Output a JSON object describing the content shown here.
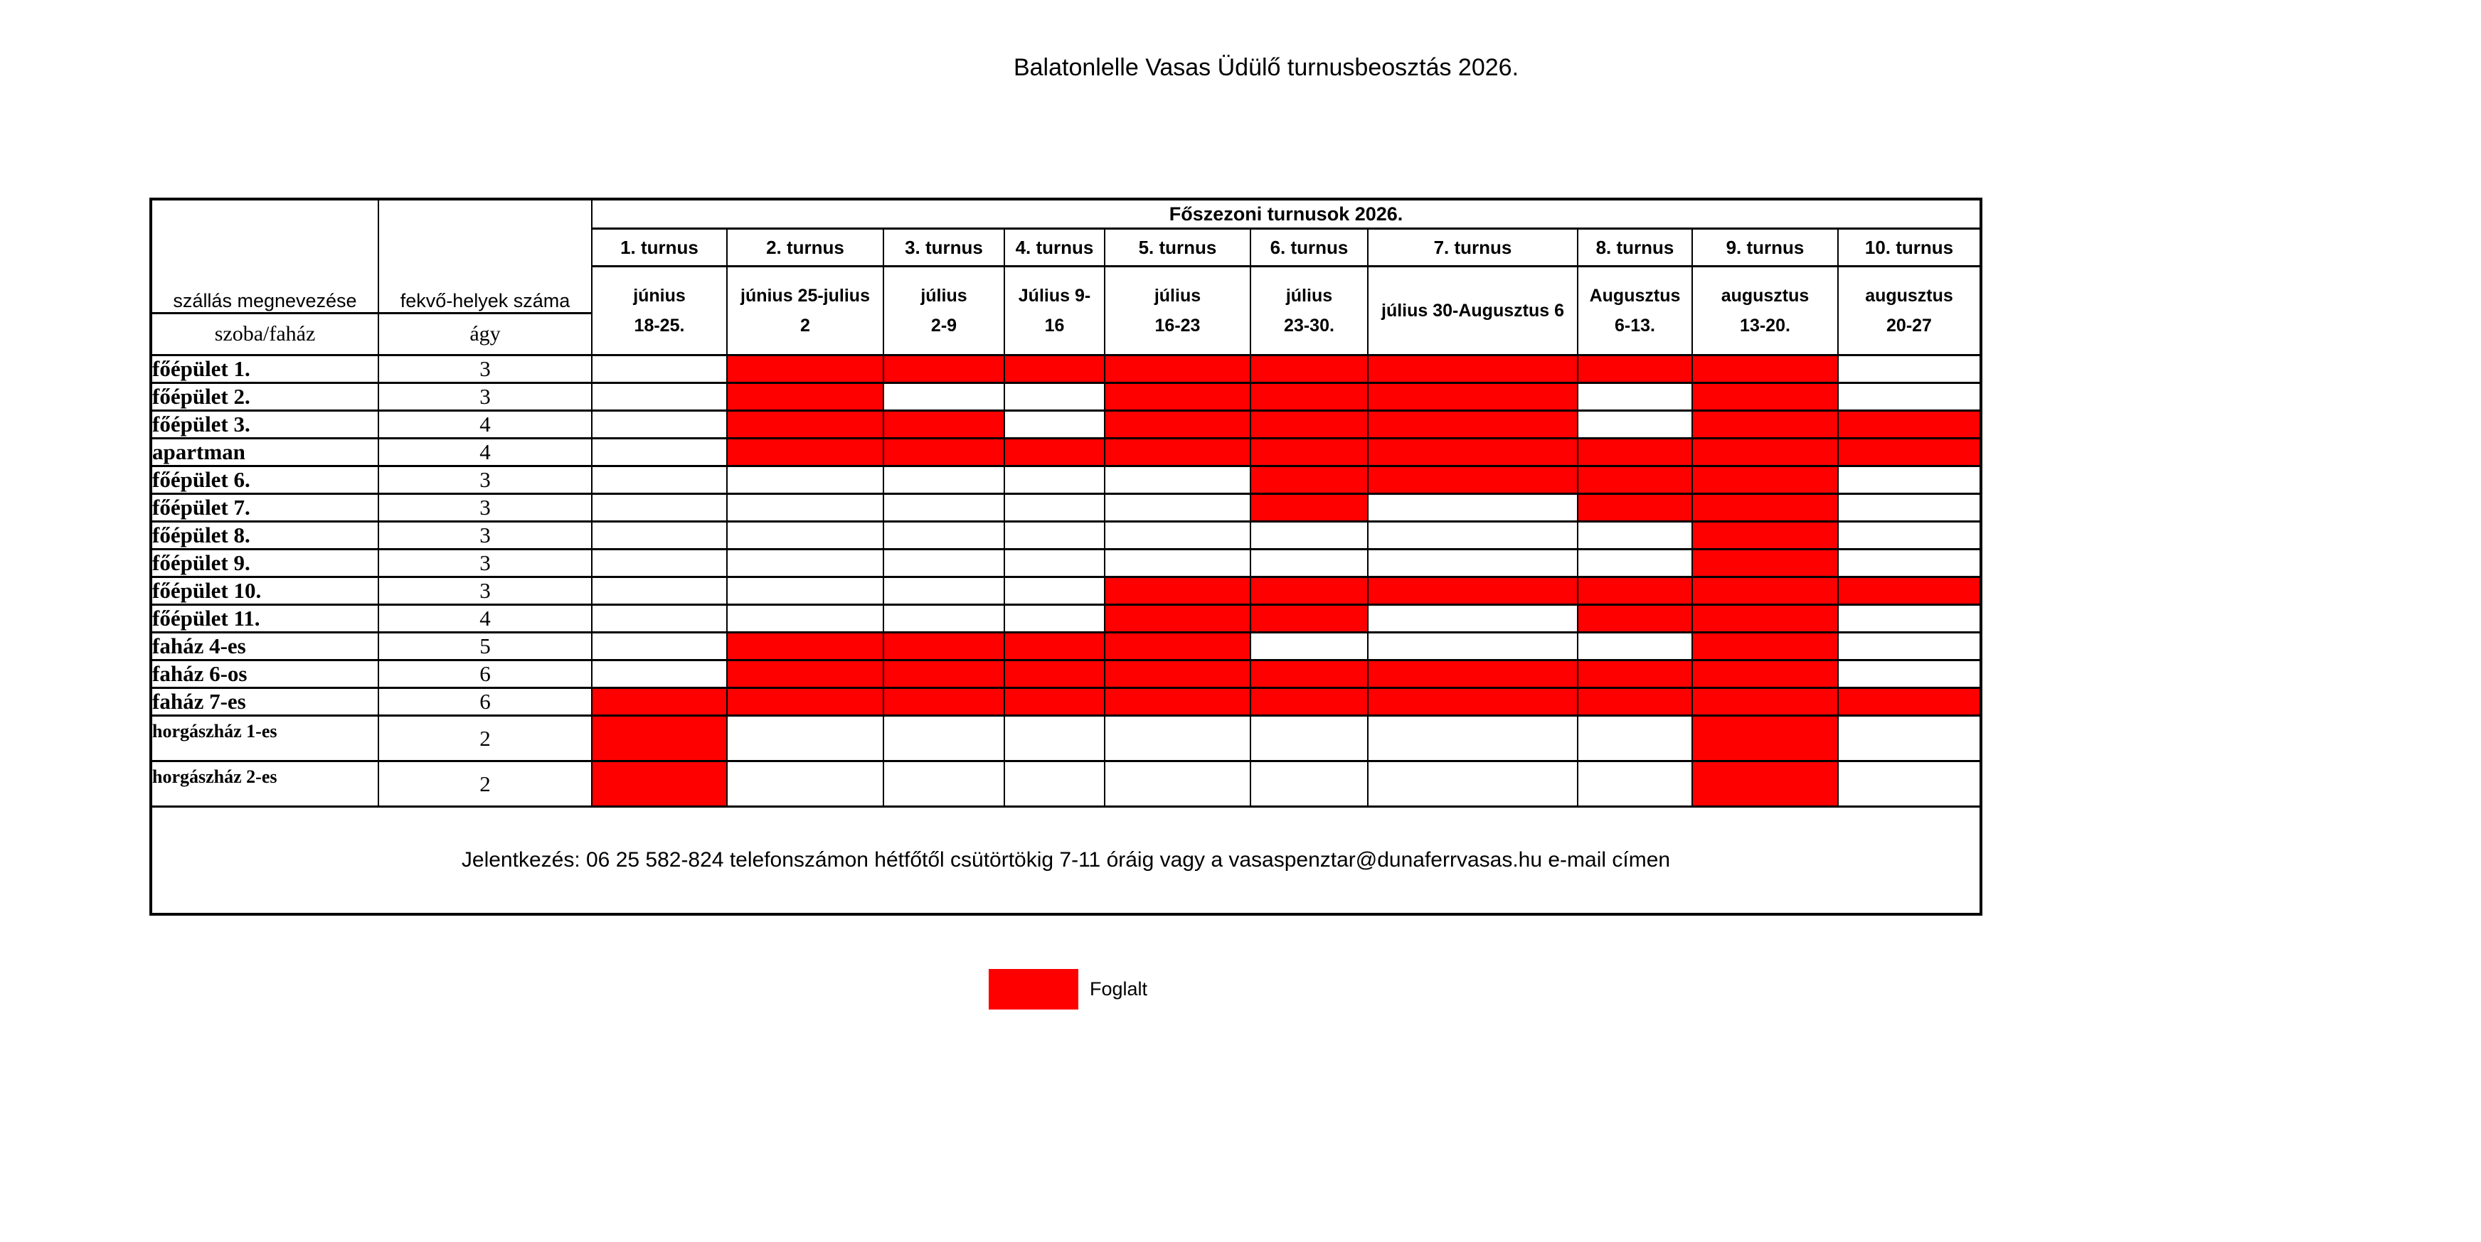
{
  "page": {
    "title": "Balatonlelle Vasas Üdülő turnusbeosztás 2026."
  },
  "colors": {
    "occupied": "#FF0000",
    "border": "#000000",
    "background": "#FFFFFF"
  },
  "table": {
    "season_header": "Főszezoni turnusok 2026.",
    "col1_header": "szállás megnevezése",
    "col1_subheader": "szoba/faház",
    "col2_header": "fekvő-helyek száma",
    "col2_subheader": "ágy",
    "turnus": [
      {
        "label": "1. turnus",
        "dates_line1": "június",
        "dates_line2": "18-25."
      },
      {
        "label": "2. turnus",
        "dates_line1": "június 25-julius",
        "dates_line2": "2"
      },
      {
        "label": "3. turnus",
        "dates_line1": "július",
        "dates_line2": "2-9"
      },
      {
        "label": "4. turnus",
        "dates_line1": "Július 9-",
        "dates_line2": "16"
      },
      {
        "label": "5. turnus",
        "dates_line1": "július",
        "dates_line2": "16-23"
      },
      {
        "label": "6. turnus",
        "dates_line1": "július",
        "dates_line2": "23-30."
      },
      {
        "label": "7. turnus",
        "dates_line1": "július 30-Augusztus 6",
        "dates_line2": ""
      },
      {
        "label": "8. turnus",
        "dates_line1": "Augusztus",
        "dates_line2": "6-13."
      },
      {
        "label": "9. turnus",
        "dates_line1": "augusztus",
        "dates_line2": "13-20."
      },
      {
        "label": "10. turnus",
        "dates_line1": "augusztus",
        "dates_line2": "20-27"
      }
    ],
    "rows": [
      {
        "name": "főépület 1.",
        "beds": "3",
        "occupied": [
          0,
          1,
          1,
          1,
          1,
          1,
          1,
          1,
          1,
          0
        ]
      },
      {
        "name": "főépület 2.",
        "beds": "3",
        "occupied": [
          0,
          1,
          0,
          0,
          1,
          1,
          1,
          0,
          1,
          0
        ]
      },
      {
        "name": "főépület 3.",
        "beds": "4",
        "occupied": [
          0,
          1,
          1,
          0,
          1,
          1,
          1,
          0,
          1,
          1
        ]
      },
      {
        "name": "apartman",
        "beds": "4",
        "occupied": [
          0,
          1,
          1,
          1,
          1,
          1,
          1,
          1,
          1,
          1
        ]
      },
      {
        "name": "főépület 6.",
        "beds": "3",
        "occupied": [
          0,
          0,
          0,
          0,
          0,
          1,
          1,
          1,
          1,
          0
        ]
      },
      {
        "name": "főépület 7.",
        "beds": "3",
        "occupied": [
          0,
          0,
          0,
          0,
          0,
          1,
          0,
          1,
          1,
          0
        ]
      },
      {
        "name": "főépület 8.",
        "beds": "3",
        "occupied": [
          0,
          0,
          0,
          0,
          0,
          0,
          0,
          0,
          1,
          0
        ]
      },
      {
        "name": "főépület 9.",
        "beds": "3",
        "occupied": [
          0,
          0,
          0,
          0,
          0,
          0,
          0,
          0,
          1,
          0
        ]
      },
      {
        "name": "főépület 10.",
        "beds": "3",
        "occupied": [
          0,
          0,
          0,
          0,
          1,
          1,
          1,
          1,
          1,
          1
        ]
      },
      {
        "name": "főépület 11.",
        "beds": "4",
        "occupied": [
          0,
          0,
          0,
          0,
          1,
          1,
          0,
          1,
          1,
          0
        ]
      },
      {
        "name": "faház 4-es",
        "beds": "5",
        "occupied": [
          0,
          1,
          1,
          1,
          1,
          0,
          0,
          0,
          1,
          0
        ]
      },
      {
        "name": "faház 6-os",
        "beds": "6",
        "occupied": [
          0,
          1,
          1,
          1,
          1,
          1,
          1,
          1,
          1,
          0
        ]
      },
      {
        "name": "faház 7-es",
        "beds": "6",
        "occupied": [
          1,
          1,
          1,
          1,
          1,
          1,
          1,
          1,
          1,
          1
        ]
      },
      {
        "name": "horgászház 1-es",
        "beds": "2",
        "occupied": [
          1,
          0,
          0,
          0,
          0,
          0,
          0,
          0,
          1,
          0
        ]
      },
      {
        "name": "horgászház 2-es",
        "beds": "2",
        "occupied": [
          1,
          0,
          0,
          0,
          0,
          0,
          0,
          0,
          1,
          0
        ]
      }
    ]
  },
  "footer": {
    "text": "Jelentkezés: 06 25 582-824 telefonszámon hétfőtől csütörtökig 7-11 óráig vagy a vasaspenztar@dunaferrvasas.hu e-mail címen"
  },
  "legend": {
    "label": "Foglalt"
  }
}
